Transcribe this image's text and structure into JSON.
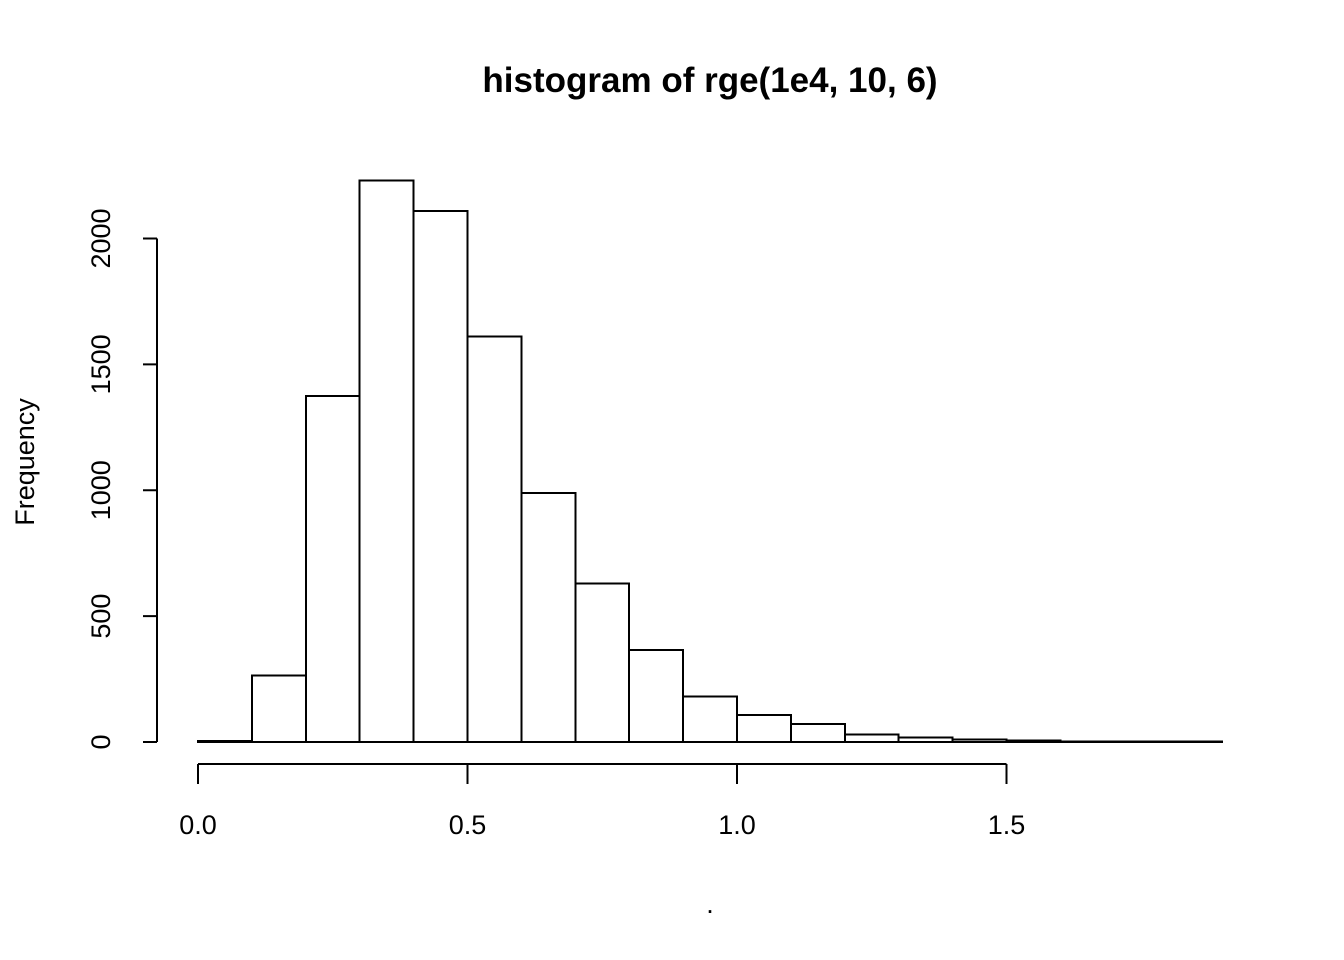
{
  "chart_data": {
    "type": "bar",
    "title": "histogram of rge(1e4, 10, 6)",
    "xlabel": ".",
    "ylabel": "Frequency",
    "bin_width": 0.1,
    "bin_edges": [
      0.0,
      0.1,
      0.2,
      0.3,
      0.4,
      0.5,
      0.6,
      0.7,
      0.8,
      0.9,
      1.0,
      1.1,
      1.2,
      1.3,
      1.4,
      1.5,
      1.6,
      1.7,
      1.8,
      1.9
    ],
    "values": [
      3,
      265,
      1375,
      2230,
      2110,
      1610,
      990,
      630,
      365,
      180,
      108,
      72,
      30,
      18,
      10,
      5,
      1,
      2,
      1
    ],
    "x_ticks": [
      0.0,
      0.5,
      1.0,
      1.5
    ],
    "x_tick_labels": [
      "0.0",
      "0.5",
      "1.0",
      "1.5"
    ],
    "y_ticks": [
      0,
      500,
      1000,
      1500,
      2000
    ],
    "y_tick_labels": [
      "0",
      "500",
      "1000",
      "1500",
      "2000"
    ],
    "xlim": [
      0.0,
      1.9
    ],
    "ylim": [
      0,
      2230
    ],
    "grid": false,
    "colors": {
      "bar_fill": "#ffffff",
      "bar_stroke": "#000000",
      "axis": "#000000"
    }
  }
}
